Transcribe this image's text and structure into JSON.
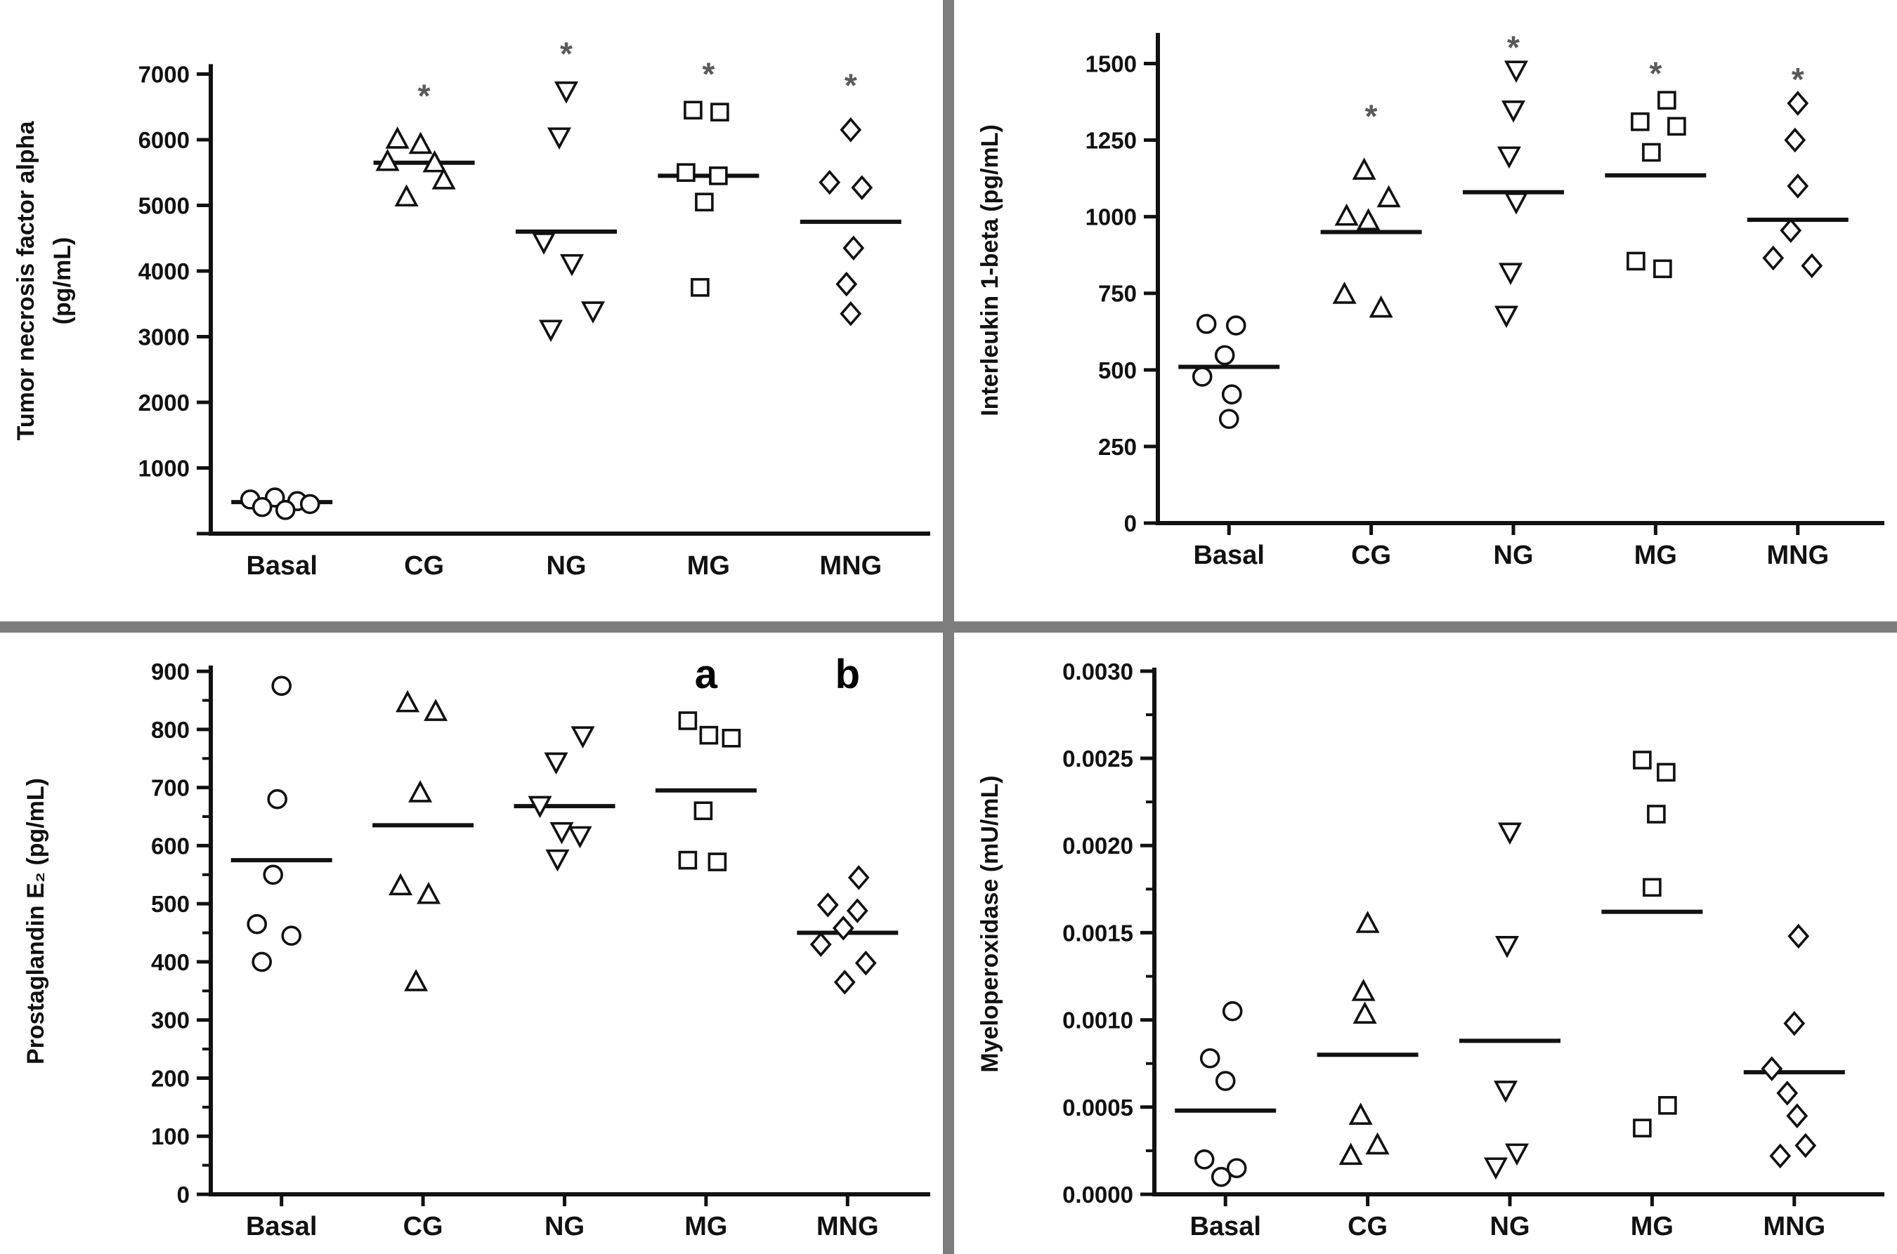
{
  "page": {
    "background": "#ffffff",
    "divider_color": "#7d7d7d",
    "axis_color": "#111111",
    "marker_fill": "#ffffff",
    "star_color": "#5a5a5a"
  },
  "chart_data": [
    {
      "type": "scatter",
      "name": "tumor-necrosis-factor-alpha",
      "ylabel_lines": [
        "Tumor necrosis factor alpha",
        "(pg/mL)"
      ],
      "ylim": [
        0,
        7700
      ],
      "axis_top": 7150,
      "minor_step": null,
      "xticks": false,
      "margins": {
        "l": 300,
        "r": 30,
        "t": 40,
        "b": 125
      },
      "yticks": [
        {
          "v": 0,
          "label": ""
        },
        {
          "v": 1000,
          "label": "1000"
        },
        {
          "v": 2000,
          "label": "2000"
        },
        {
          "v": 3000,
          "label": "3000"
        },
        {
          "v": 4000,
          "label": "4000"
        },
        {
          "v": 5000,
          "label": "5000"
        },
        {
          "v": 6000,
          "label": "6000"
        },
        {
          "v": 7000,
          "label": "7000"
        }
      ],
      "categories": [
        "Basal",
        "CG",
        "NG",
        "MG",
        "MNG"
      ],
      "groups": [
        {
          "label": "Basal",
          "marker": "circle",
          "mean": 480,
          "annotation": null,
          "points": [
            [
              -45,
              520
            ],
            [
              -10,
              550
            ],
            [
              22,
              495
            ],
            [
              -28,
              405
            ],
            [
              5,
              360
            ],
            [
              40,
              450
            ]
          ]
        },
        {
          "label": "CG",
          "marker": "triangle-up",
          "mean": 5650,
          "annotation": {
            "text": "*",
            "y": 6820,
            "style": "star"
          },
          "points": [
            [
              -38,
              6000
            ],
            [
              -5,
              5920
            ],
            [
              -52,
              5660
            ],
            [
              15,
              5640
            ],
            [
              -25,
              5120
            ],
            [
              28,
              5380
            ]
          ]
        },
        {
          "label": "NG",
          "marker": "triangle-down",
          "mean": 4600,
          "annotation": {
            "text": "*",
            "y": 7460,
            "style": "star"
          },
          "points": [
            [
              0,
              6750
            ],
            [
              -10,
              6050
            ],
            [
              -32,
              4450
            ],
            [
              8,
              4120
            ],
            [
              38,
              3400
            ],
            [
              -22,
              3120
            ]
          ]
        },
        {
          "label": "MG",
          "marker": "square",
          "mean": 5450,
          "annotation": {
            "text": "*",
            "y": 7150,
            "style": "star"
          },
          "points": [
            [
              -22,
              6450
            ],
            [
              16,
              6420
            ],
            [
              -32,
              5500
            ],
            [
              14,
              5450
            ],
            [
              -6,
              5050
            ],
            [
              -12,
              3750
            ]
          ]
        },
        {
          "label": "MNG",
          "marker": "diamond",
          "mean": 4750,
          "annotation": {
            "text": "*",
            "y": 6980,
            "style": "star"
          },
          "points": [
            [
              0,
              6150
            ],
            [
              -30,
              5350
            ],
            [
              16,
              5270
            ],
            [
              4,
              4350
            ],
            [
              -6,
              3800
            ],
            [
              0,
              3350
            ]
          ]
        }
      ]
    },
    {
      "type": "scatter",
      "name": "interleukin-1-beta",
      "ylabel_lines": [
        "Interleukin 1-beta (pg/mL)"
      ],
      "ylim": [
        0,
        1650
      ],
      "axis_top": 1600,
      "minor_step": null,
      "xticks": true,
      "margins": {
        "l": 290,
        "r": 40,
        "t": 25,
        "b": 140
      },
      "yticks": [
        {
          "v": 0,
          "label": "0"
        },
        {
          "v": 250,
          "label": "250"
        },
        {
          "v": 500,
          "label": "500"
        },
        {
          "v": 750,
          "label": "750"
        },
        {
          "v": 1000,
          "label": "1000"
        },
        {
          "v": 1250,
          "label": "1250"
        },
        {
          "v": 1500,
          "label": "1500"
        }
      ],
      "categories": [
        "Basal",
        "CG",
        "NG",
        "MG",
        "MNG"
      ],
      "groups": [
        {
          "label": "Basal",
          "marker": "circle",
          "mean": 510,
          "annotation": null,
          "points": [
            [
              -32,
              650
            ],
            [
              10,
              645
            ],
            [
              -6,
              548
            ],
            [
              -38,
              478
            ],
            [
              4,
              420
            ],
            [
              0,
              340
            ]
          ]
        },
        {
          "label": "CG",
          "marker": "triangle-up",
          "mean": 950,
          "annotation": {
            "text": "*",
            "y": 1360,
            "style": "star"
          },
          "points": [
            [
              -10,
              1150
            ],
            [
              25,
              1060
            ],
            [
              -35,
              1000
            ],
            [
              -4,
              985
            ],
            [
              -38,
              745
            ],
            [
              14,
              700
            ]
          ]
        },
        {
          "label": "NG",
          "marker": "triangle-down",
          "mean": 1080,
          "annotation": {
            "text": "*",
            "y": 1585,
            "style": "star"
          },
          "points": [
            [
              4,
              1480
            ],
            [
              0,
              1350
            ],
            [
              -6,
              1200
            ],
            [
              4,
              1050
            ],
            [
              -4,
              820
            ],
            [
              -10,
              680
            ]
          ]
        },
        {
          "label": "MG",
          "marker": "square",
          "mean": 1135,
          "annotation": {
            "text": "*",
            "y": 1500,
            "style": "star"
          },
          "points": [
            [
              16,
              1380
            ],
            [
              -22,
              1310
            ],
            [
              30,
              1295
            ],
            [
              -6,
              1210
            ],
            [
              -28,
              855
            ],
            [
              10,
              830
            ]
          ]
        },
        {
          "label": "MNG",
          "marker": "diamond",
          "mean": 990,
          "annotation": {
            "text": "*",
            "y": 1480,
            "style": "star"
          },
          "points": [
            [
              0,
              1370
            ],
            [
              -4,
              1250
            ],
            [
              0,
              1100
            ],
            [
              -10,
              955
            ],
            [
              -35,
              865
            ],
            [
              20,
              840
            ]
          ]
        }
      ]
    },
    {
      "type": "scatter",
      "name": "prostaglandin-e2",
      "ylabel_lines": [
        "Prostaglandin E₂ (pg/mL)"
      ],
      "ylim": [
        0,
        940
      ],
      "axis_top": 910,
      "minor_step": 50,
      "xticks": true,
      "margins": {
        "l": 300,
        "r": 35,
        "t": 22,
        "b": 85
      },
      "yticks": [
        {
          "v": 0,
          "label": "0"
        },
        {
          "v": 100,
          "label": "100"
        },
        {
          "v": 200,
          "label": "200"
        },
        {
          "v": 300,
          "label": "300"
        },
        {
          "v": 400,
          "label": "400"
        },
        {
          "v": 500,
          "label": "500"
        },
        {
          "v": 600,
          "label": "600"
        },
        {
          "v": 700,
          "label": "700"
        },
        {
          "v": 800,
          "label": "800"
        },
        {
          "v": 900,
          "label": "900"
        }
      ],
      "categories": [
        "Basal",
        "CG",
        "NG",
        "MG",
        "MNG"
      ],
      "groups": [
        {
          "label": "Basal",
          "marker": "circle",
          "mean": 575,
          "annotation": null,
          "points": [
            [
              0,
              875
            ],
            [
              -6,
              680
            ],
            [
              -12,
              550
            ],
            [
              -35,
              465
            ],
            [
              14,
              445
            ],
            [
              -28,
              400
            ]
          ]
        },
        {
          "label": "CG",
          "marker": "triangle-up",
          "mean": 635,
          "annotation": null,
          "points": [
            [
              -22,
              845
            ],
            [
              18,
              830
            ],
            [
              -4,
              690
            ],
            [
              -32,
              530
            ],
            [
              8,
              515
            ],
            [
              -10,
              365
            ]
          ]
        },
        {
          "label": "NG",
          "marker": "triangle-down",
          "mean": 668,
          "annotation": null,
          "points": [
            [
              26,
              790
            ],
            [
              -12,
              745
            ],
            [
              -35,
              670
            ],
            [
              -4,
              625
            ],
            [
              22,
              618
            ],
            [
              -10,
              578
            ]
          ]
        },
        {
          "label": "MG",
          "marker": "square",
          "mean": 695,
          "annotation": {
            "text": "a",
            "y": 895,
            "style": "letter"
          },
          "points": [
            [
              -26,
              815
            ],
            [
              4,
              790
            ],
            [
              36,
              785
            ],
            [
              -4,
              660
            ],
            [
              -26,
              575
            ],
            [
              16,
              572
            ]
          ]
        },
        {
          "label": "MNG",
          "marker": "diamond",
          "mean": 450,
          "annotation": {
            "text": "b",
            "y": 895,
            "style": "letter"
          },
          "points": [
            [
              16,
              545
            ],
            [
              -28,
              498
            ],
            [
              14,
              488
            ],
            [
              -6,
              458
            ],
            [
              -38,
              430
            ],
            [
              26,
              398
            ],
            [
              -4,
              365
            ]
          ]
        }
      ]
    },
    {
      "type": "scatter",
      "name": "myeloperoxidase",
      "ylabel_lines": [
        "Myeloperoxidase (mU/mL)"
      ],
      "ylim": [
        0,
        0.0031
      ],
      "axis_top": 0.00302,
      "minor_step": 0.00025,
      "xticks": true,
      "margins": {
        "l": 285,
        "r": 45,
        "t": 30,
        "b": 85
      },
      "yticks": [
        {
          "v": 0,
          "label": "0.0000"
        },
        {
          "v": 0.0005,
          "label": "0.0005"
        },
        {
          "v": 0.001,
          "label": "0.0010"
        },
        {
          "v": 0.0015,
          "label": "0.0015"
        },
        {
          "v": 0.002,
          "label": "0.0020"
        },
        {
          "v": 0.0025,
          "label": "0.0025"
        },
        {
          "v": 0.003,
          "label": "0.0030"
        }
      ],
      "categories": [
        "Basal",
        "CG",
        "NG",
        "MG",
        "MNG"
      ],
      "groups": [
        {
          "label": "Basal",
          "marker": "circle",
          "mean": 0.00048,
          "annotation": null,
          "points": [
            [
              10,
              0.00105
            ],
            [
              -22,
              0.00078
            ],
            [
              0,
              0.00065
            ],
            [
              -30,
              0.0002
            ],
            [
              16,
              0.00015
            ],
            [
              -6,
              0.0001
            ]
          ]
        },
        {
          "label": "CG",
          "marker": "triangle-up",
          "mean": 0.0008,
          "annotation": null,
          "points": [
            [
              0,
              0.00155
            ],
            [
              -6,
              0.00116
            ],
            [
              -4,
              0.00103
            ],
            [
              -10,
              0.00045
            ],
            [
              -24,
              0.00022
            ],
            [
              14,
              0.00028
            ]
          ]
        },
        {
          "label": "NG",
          "marker": "triangle-down",
          "mean": 0.00088,
          "annotation": null,
          "points": [
            [
              0,
              0.00208
            ],
            [
              -4,
              0.00143
            ],
            [
              -6,
              0.0006
            ],
            [
              -20,
              0.00016
            ],
            [
              10,
              0.00024
            ]
          ]
        },
        {
          "label": "MG",
          "marker": "square",
          "mean": 0.00162,
          "annotation": null,
          "points": [
            [
              -14,
              0.00249
            ],
            [
              20,
              0.00242
            ],
            [
              6,
              0.00218
            ],
            [
              0,
              0.00176
            ],
            [
              22,
              0.00051
            ],
            [
              -14,
              0.00038
            ]
          ]
        },
        {
          "label": "MNG",
          "marker": "diamond",
          "mean": 0.0007,
          "annotation": null,
          "points": [
            [
              6,
              0.00148
            ],
            [
              0,
              0.00098
            ],
            [
              -32,
              0.00072
            ],
            [
              -10,
              0.00058
            ],
            [
              4,
              0.00045
            ],
            [
              -20,
              0.00022
            ],
            [
              16,
              0.00028
            ]
          ]
        }
      ]
    }
  ]
}
